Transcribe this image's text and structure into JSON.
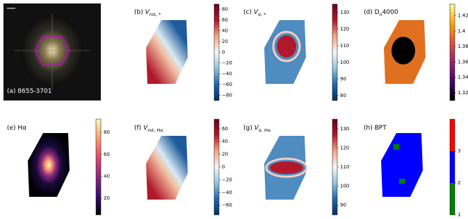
{
  "panels": [
    {
      "title": [
        {
          "text": "(a) 8655-3701"
        }
      ]
    },
    {
      "title": [
        {
          "text": "(b) "
        },
        {
          "text": "V",
          "italic": true
        },
        {
          "text": "rot, *",
          "sub": true
        }
      ],
      "lim": [
        -90,
        90
      ],
      "colors": [
        "#053061",
        "#2166ac",
        "#92c5de",
        "#f7f7f7",
        "#f4a582",
        "#b2182b",
        "#67001f"
      ],
      "ticks": [
        {
          "value": -80,
          "label": "−80"
        },
        {
          "value": -60,
          "label": "−60"
        },
        {
          "value": -40,
          "label": "−40"
        },
        {
          "value": -20,
          "label": "−20"
        },
        0,
        20,
        40,
        60,
        80
      ]
    },
    {
      "title": [
        {
          "text": "(c) "
        },
        {
          "text": "V",
          "italic": true
        },
        {
          "text": "σ, *",
          "sub": true
        }
      ],
      "lim": [
        77,
        135
      ],
      "colors": [
        "#053061",
        "#2166ac",
        "#92c5de",
        "#f7f7f7",
        "#f4a582",
        "#b2182b",
        "#67001f"
      ],
      "ticks": [
        80,
        90,
        100,
        110,
        120,
        130
      ]
    },
    {
      "title": [
        {
          "text": "(d) D"
        },
        {
          "text": "n",
          "sub": true
        },
        {
          "text": "4000"
        }
      ],
      "lim": [
        1.31,
        1.435
      ],
      "colors": [
        "#000004",
        "#420a68",
        "#932667",
        "#dd513a",
        "#fca50a",
        "#fcffa4"
      ],
      "ticks": [
        1.32,
        1.34,
        1.36,
        1.38,
        1.4,
        1.42
      ]
    },
    {
      "title": [
        {
          "text": "(e) Hα"
        }
      ],
      "lim": [
        5,
        92
      ],
      "colors": [
        "#000004",
        "#3b0f70",
        "#8c2981",
        "#de4968",
        "#fe9f6d",
        "#fcfdbf"
      ],
      "ticks": [
        20,
        40,
        60,
        80
      ]
    },
    {
      "title": [
        {
          "text": "(f) "
        },
        {
          "text": "V",
          "italic": true
        },
        {
          "text": "rot, Hα",
          "sub": true
        }
      ],
      "lim": [
        -75,
        75
      ],
      "colors": [
        "#053061",
        "#2166ac",
        "#92c5de",
        "#f7f7f7",
        "#f4a582",
        "#b2182b",
        "#67001f"
      ],
      "ticks": [
        {
          "value": -60,
          "label": "−60"
        },
        {
          "value": -40,
          "label": "−40"
        },
        {
          "value": -20,
          "label": "−20"
        },
        0,
        20,
        40,
        60
      ]
    },
    {
      "title": [
        {
          "text": "(g) "
        },
        {
          "text": "V",
          "italic": true
        },
        {
          "text": "σ, Hα",
          "sub": true
        }
      ],
      "lim": [
        85,
        135
      ],
      "colors": [
        "#053061",
        "#2166ac",
        "#92c5de",
        "#f7f7f7",
        "#f4a582",
        "#b2182b",
        "#67001f"
      ],
      "ticks": [
        90,
        100,
        110,
        120,
        130
      ]
    },
    {
      "title": [
        {
          "text": "(h) BPT"
        }
      ],
      "lim": [
        1,
        4
      ],
      "colors": [
        "#008000",
        "#0000ff",
        "#ff0000"
      ],
      "discrete": true,
      "ticks": [
        1,
        2,
        3
      ]
    }
  ]
}
